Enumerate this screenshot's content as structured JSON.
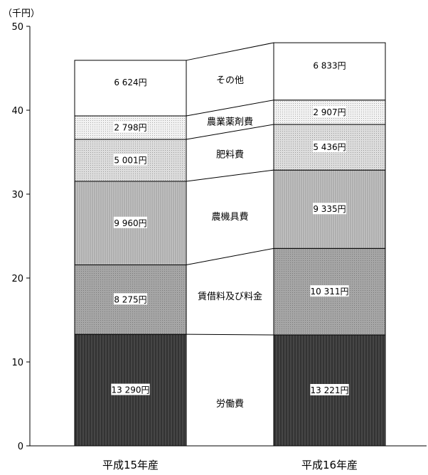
{
  "chart_data": {
    "type": "bar",
    "stacked": true,
    "unit": "（千円）",
    "ylim": [
      0,
      50
    ],
    "yticks": [
      "0",
      "10",
      "20",
      "30",
      "40",
      "50"
    ],
    "categories": [
      "平成15年産",
      "平成16年産"
    ],
    "series": [
      {
        "name": "労働費",
        "values": [
          13.29,
          13.221
        ],
        "labels": [
          "13 290円",
          "13 221円"
        ],
        "color": "#3a3a3a"
      },
      {
        "name": "賃借料及び料金",
        "values": [
          8.275,
          10.311
        ],
        "labels": [
          "8 275円",
          "10 311円"
        ],
        "color": "#9a9a9a"
      },
      {
        "name": "農機具費",
        "values": [
          9.96,
          9.335
        ],
        "labels": [
          "9 960円",
          "9 335円"
        ],
        "color": "#b8b8b8"
      },
      {
        "name": "肥料費",
        "values": [
          5.001,
          5.436
        ],
        "labels": [
          "5 001円",
          "5 436円"
        ],
        "color": "#d2d2d2"
      },
      {
        "name": "農業薬剤費",
        "values": [
          2.798,
          2.907
        ],
        "labels": [
          "2 798円",
          "2 907円"
        ],
        "color": "#e6e6e6"
      },
      {
        "name": "その他",
        "values": [
          6.624,
          6.833
        ],
        "labels": [
          "6 624円",
          "6 833円"
        ],
        "color": "#ffffff"
      }
    ],
    "grid": false,
    "legend": "between-bars"
  }
}
